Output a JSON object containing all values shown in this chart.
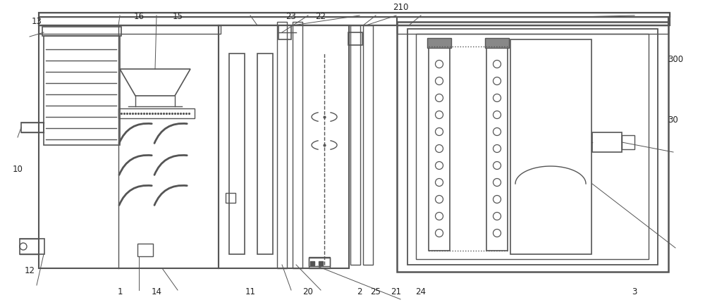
{
  "lc": "#555555",
  "bg": "white",
  "fig_w": 10.0,
  "fig_h": 4.36,
  "dpi": 100,
  "labels": [
    [
      "1",
      170,
      22
    ],
    [
      "2",
      510,
      22
    ],
    [
      "3",
      900,
      22
    ],
    [
      "10",
      25,
      195
    ],
    [
      "11",
      355,
      22
    ],
    [
      "12",
      42,
      52
    ],
    [
      "13",
      52,
      405
    ],
    [
      "14",
      222,
      22
    ],
    [
      "15",
      252,
      412
    ],
    [
      "16",
      197,
      412
    ],
    [
      "20",
      437,
      22
    ],
    [
      "21",
      562,
      22
    ],
    [
      "22",
      455,
      412
    ],
    [
      "23",
      413,
      412
    ],
    [
      "24",
      597,
      22
    ],
    [
      "25",
      533,
      22
    ],
    [
      "30",
      955,
      265
    ],
    [
      "210",
      568,
      425
    ],
    [
      "300",
      958,
      352
    ]
  ]
}
